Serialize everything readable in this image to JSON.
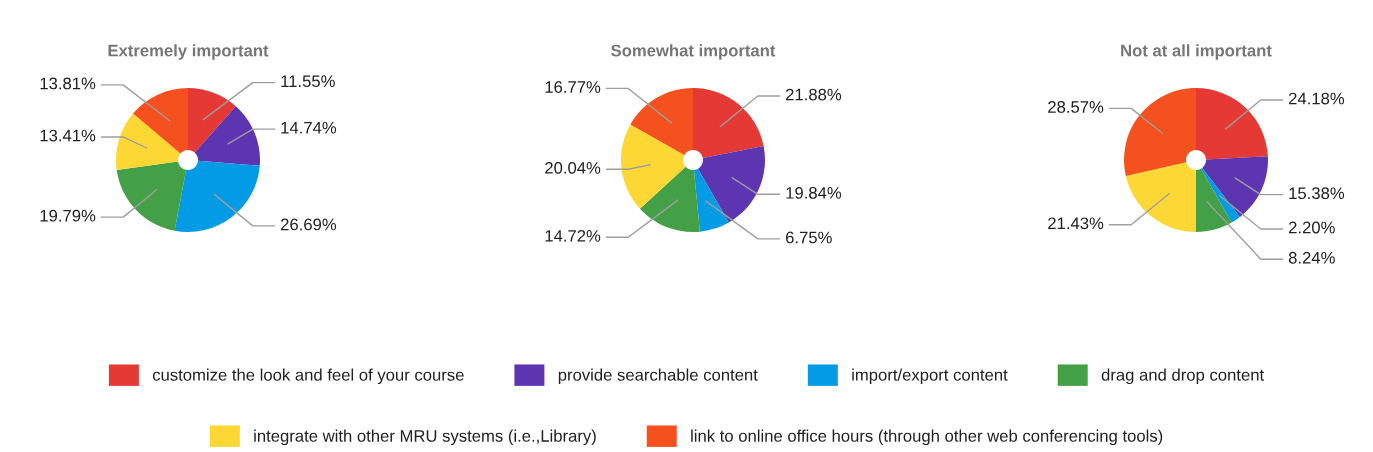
{
  "chart_data": [
    {
      "type": "donut",
      "title": "Extremely important",
      "categories": [
        "customize the look and feel of your course",
        "provide searchable content",
        "import/export content",
        "drag and drop content",
        "integrate with other MRU systems (i.e.,Library)",
        "link to online office hours (through other web conferencing tools)"
      ],
      "values": [
        11.55,
        14.74,
        26.69,
        19.79,
        13.41,
        13.81
      ],
      "value_labels": [
        "11.55%",
        "14.74%",
        "26.69%",
        "19.79%",
        "13.41%",
        "13.81%"
      ],
      "colors": [
        "#e53935",
        "#5e35b1",
        "#039be5",
        "#43a047",
        "#fdd835",
        "#f4511e"
      ],
      "legend": "bottom"
    },
    {
      "type": "donut",
      "title": "Somewhat important",
      "values": [
        21.88,
        19.84,
        6.75,
        14.72,
        20.04,
        16.77
      ],
      "value_labels": [
        "21.88%",
        "19.84%",
        "6.75%",
        "14.72%",
        "20.04%",
        "16.77%"
      ],
      "colors": [
        "#e53935",
        "#5e35b1",
        "#039be5",
        "#43a047",
        "#fdd835",
        "#f4511e"
      ]
    },
    {
      "type": "donut",
      "title": "Not at all important",
      "values": [
        24.18,
        15.38,
        2.2,
        8.24,
        21.43,
        28.57
      ],
      "value_labels": [
        "24.18%",
        "15.38%",
        "2.20%",
        "8.24%",
        "21.43%",
        "28.57%"
      ],
      "colors": [
        "#e53935",
        "#5e35b1",
        "#039be5",
        "#43a047",
        "#fdd835",
        "#f4511e"
      ]
    }
  ]
}
